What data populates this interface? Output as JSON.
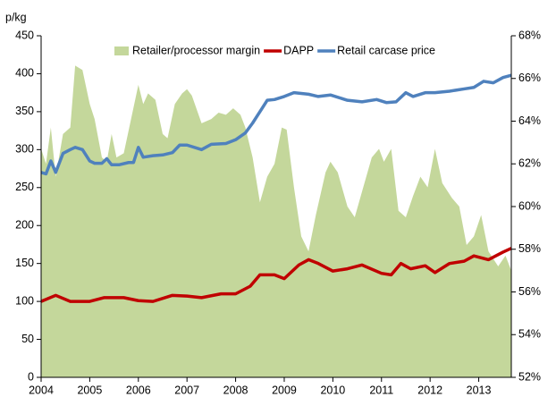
{
  "chart_data": {
    "type": "area-line",
    "y_label": "p/kg",
    "xlim": [
      2004,
      2013.67
    ],
    "xticks": [
      2004,
      2005,
      2006,
      2007,
      2008,
      2009,
      2010,
      2011,
      2012,
      2013
    ],
    "ylim": [
      0,
      450
    ],
    "yticks": [
      0,
      50,
      100,
      150,
      200,
      250,
      300,
      350,
      400,
      450
    ],
    "y2lim": [
      52,
      68
    ],
    "y2ticks": [
      {
        "value": 52,
        "label": "52%"
      },
      {
        "value": 54,
        "label": "54%"
      },
      {
        "value": 56,
        "label": "56%"
      },
      {
        "value": 58,
        "label": "58%"
      },
      {
        "value": 60,
        "label": "60%"
      },
      {
        "value": 62,
        "label": "62%"
      },
      {
        "value": 64,
        "label": "64%"
      },
      {
        "value": 66,
        "label": "66%"
      },
      {
        "value": 68,
        "label": "68%"
      }
    ],
    "legend": "upper center",
    "series": [
      {
        "name": "Retailer/processor margin",
        "kind": "area",
        "axis": "y2",
        "color": "#c4d79b",
        "x": [
          2004.0,
          2004.1,
          2004.2,
          2004.3,
          2004.45,
          2004.6,
          2004.7,
          2004.85,
          2005.0,
          2005.1,
          2005.25,
          2005.35,
          2005.45,
          2005.55,
          2005.7,
          2005.85,
          2006.0,
          2006.1,
          2006.2,
          2006.35,
          2006.5,
          2006.6,
          2006.75,
          2006.9,
          2007.0,
          2007.1,
          2007.3,
          2007.5,
          2007.65,
          2007.8,
          2007.95,
          2008.1,
          2008.2,
          2008.35,
          2008.5,
          2008.65,
          2008.8,
          2008.95,
          2009.05,
          2009.2,
          2009.35,
          2009.5,
          2009.65,
          2009.85,
          2009.95,
          2010.1,
          2010.3,
          2010.45,
          2010.6,
          2010.8,
          2010.95,
          2011.05,
          2011.2,
          2011.35,
          2011.5,
          2011.65,
          2011.8,
          2011.95,
          2012.1,
          2012.25,
          2012.45,
          2012.6,
          2012.75,
          2012.9,
          2013.05,
          2013.2,
          2013.4,
          2013.55,
          2013.67
        ],
        "values": [
          62.7,
          62.0,
          63.7,
          61.4,
          63.4,
          63.7,
          66.6,
          66.4,
          64.8,
          64.1,
          62.3,
          62.1,
          63.4,
          62.3,
          62.5,
          64.1,
          65.7,
          64.8,
          65.3,
          65.0,
          63.4,
          63.2,
          64.8,
          65.3,
          65.5,
          65.2,
          63.9,
          64.1,
          64.4,
          64.3,
          64.6,
          64.3,
          63.7,
          62.3,
          60.2,
          61.4,
          62.0,
          63.7,
          63.6,
          60.9,
          58.6,
          57.9,
          59.6,
          61.6,
          62.1,
          61.6,
          60.0,
          59.5,
          60.7,
          62.3,
          62.7,
          62.1,
          62.7,
          59.8,
          59.5,
          60.5,
          61.4,
          60.9,
          62.7,
          61.1,
          60.4,
          60.0,
          58.2,
          58.6,
          59.6,
          57.9,
          57.2,
          57.7,
          57.0
        ]
      },
      {
        "name": "DAPP",
        "kind": "line",
        "color": "#c00000",
        "x": [
          2004.0,
          2004.3,
          2004.6,
          2005.0,
          2005.3,
          2005.7,
          2006.0,
          2006.3,
          2006.7,
          2007.0,
          2007.3,
          2007.7,
          2008.0,
          2008.3,
          2008.5,
          2008.8,
          2009.0,
          2009.3,
          2009.5,
          2009.7,
          2010.0,
          2010.3,
          2010.6,
          2011.0,
          2011.2,
          2011.4,
          2011.6,
          2011.9,
          2012.1,
          2012.4,
          2012.7,
          2012.9,
          2013.2,
          2013.5,
          2013.67
        ],
        "values": [
          100,
          108,
          100,
          100,
          105,
          105,
          101,
          100,
          108,
          107,
          105,
          110,
          110,
          120,
          135,
          135,
          130,
          148,
          155,
          150,
          140,
          143,
          148,
          137,
          135,
          150,
          143,
          147,
          138,
          150,
          153,
          160,
          155,
          165,
          170
        ]
      },
      {
        "name": "Retail carcase price",
        "kind": "line",
        "color": "#4f81bd",
        "x": [
          2004.0,
          2004.1,
          2004.2,
          2004.3,
          2004.45,
          2004.6,
          2004.7,
          2004.85,
          2005.0,
          2005.1,
          2005.25,
          2005.35,
          2005.45,
          2005.6,
          2005.8,
          2005.9,
          2006.0,
          2006.1,
          2006.3,
          2006.5,
          2006.7,
          2006.85,
          2007.0,
          2007.3,
          2007.5,
          2007.8,
          2008.0,
          2008.2,
          2008.35,
          2008.5,
          2008.65,
          2008.8,
          2009.0,
          2009.2,
          2009.5,
          2009.7,
          2009.95,
          2010.3,
          2010.6,
          2010.9,
          2011.1,
          2011.3,
          2011.5,
          2011.65,
          2011.9,
          2012.1,
          2012.4,
          2012.7,
          2012.9,
          2013.1,
          2013.3,
          2013.5,
          2013.67
        ],
        "values": [
          270,
          268,
          285,
          270,
          295,
          300,
          303,
          300,
          285,
          282,
          282,
          288,
          280,
          280,
          283,
          283,
          303,
          290,
          292,
          293,
          296,
          306,
          306,
          300,
          307,
          308,
          313,
          322,
          335,
          350,
          365,
          366,
          370,
          375,
          373,
          370,
          372,
          365,
          363,
          366,
          362,
          363,
          375,
          370,
          375,
          375,
          377,
          380,
          382,
          390,
          388,
          395,
          398
        ]
      }
    ]
  }
}
